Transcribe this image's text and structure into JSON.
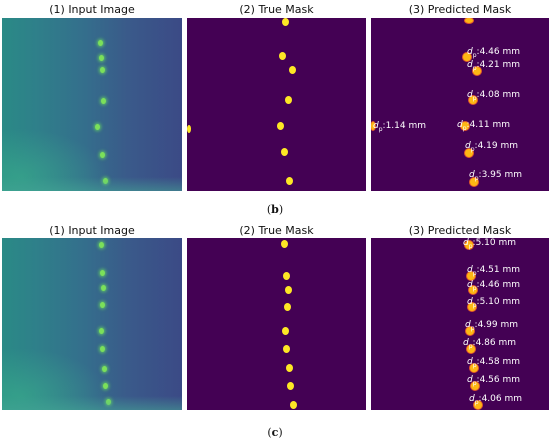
{
  "figure": {
    "rows": [
      {
        "id": "b",
        "caption": "b",
        "panels": {
          "input": {
            "title": "(1) Input Image"
          },
          "true_mask": {
            "title": "(2) True Mask"
          },
          "predicted": {
            "title": "(3) Predicted Mask",
            "diameter_symbol": "d",
            "diameter_sub": "p",
            "labels": [
              {
                "value": ":4.46 mm"
              },
              {
                "value": ":4.21 mm"
              },
              {
                "value": ":4.08 mm"
              },
              {
                "value": ":1.14 mm"
              },
              {
                "value": ":4.11 mm"
              },
              {
                "value": ":4.19 mm"
              },
              {
                "value": ":3.95 mm"
              }
            ]
          }
        }
      },
      {
        "id": "c",
        "caption": "c",
        "panels": {
          "input": {
            "title": "(1) Input Image"
          },
          "true_mask": {
            "title": "(2) True Mask"
          },
          "predicted": {
            "title": "(3) Predicted Mask",
            "diameter_symbol": "d",
            "diameter_sub": "p",
            "labels": [
              {
                "value": ":5.10 mm"
              },
              {
                "value": ":4.51 mm"
              },
              {
                "value": ":4.46 mm"
              },
              {
                "value": ":5.10 mm"
              },
              {
                "value": ":4.99 mm"
              },
              {
                "value": ":4.86 mm"
              },
              {
                "value": ":4.58 mm"
              },
              {
                "value": ":4.56 mm"
              },
              {
                "value": ":4.06 mm"
              }
            ]
          }
        }
      }
    ],
    "colors": {
      "mask_background": "#440154",
      "mask_droplet": "#fde725",
      "predicted_outline": "#e35a2a",
      "input_droplet": "#7be05a"
    }
  }
}
